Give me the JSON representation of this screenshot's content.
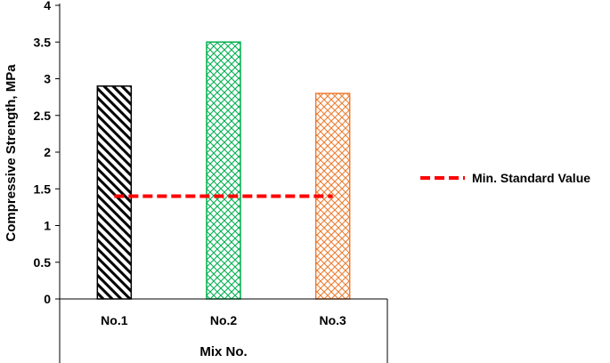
{
  "chart_data": {
    "type": "bar",
    "categories": [
      "No.1",
      "No.2",
      "No.3"
    ],
    "series": [
      {
        "values": [
          2.9,
          3.5,
          2.8
        ]
      },
      {
        "name": "Min. Standard Value",
        "type": "line",
        "values": [
          1.4,
          1.4,
          1.4
        ]
      }
    ],
    "xlabel": "Mix No.",
    "ylabel": "Compressive Strength, MPa",
    "ylim": [
      0,
      4
    ],
    "yticks": [
      "0",
      "0.5",
      "1",
      "1.5",
      "2",
      "2.5",
      "3",
      "3.5",
      "4"
    ],
    "grid": false,
    "legend_position": "right",
    "legend": [
      {
        "label": "Min. Standard Value",
        "color": "#ff0000",
        "style": "dashed"
      }
    ],
    "bar_colors": [
      "#000000",
      "#00b050",
      "#ed7d31"
    ],
    "bar_patterns": [
      "diagonal-hatch",
      "diamond-crosshatch",
      "diamond-crosshatch"
    ],
    "line_color": "#ff0000"
  }
}
